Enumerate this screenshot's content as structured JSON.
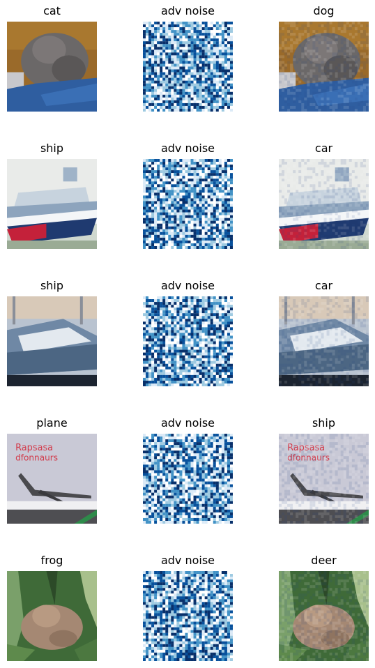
{
  "rows": [
    {
      "left": "cat",
      "middle": "adv noise",
      "right": "dog"
    },
    {
      "left": "ship",
      "middle": "adv noise",
      "right": "car"
    },
    {
      "left": "ship",
      "middle": "adv noise",
      "right": "car"
    },
    {
      "left": "plane",
      "middle": "adv noise",
      "right": "ship"
    },
    {
      "left": "frog",
      "middle": "adv noise",
      "right": "deer"
    }
  ],
  "noise_colors": [
    "#ffffff",
    "#dbeaf7",
    "#9ecae1",
    "#4292c6",
    "#08519c",
    "#08306b"
  ],
  "poster_text": [
    "Rapsasa",
    "dfonnaurs"
  ]
}
